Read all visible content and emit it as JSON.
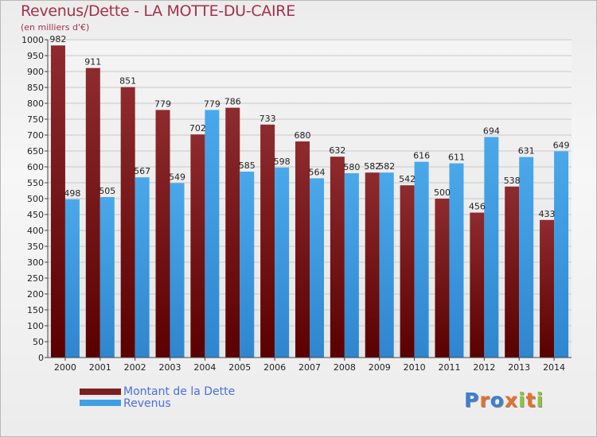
{
  "chart_data": {
    "type": "bar",
    "title": "Revenus/Dette - LA MOTTE-DU-CAIRE",
    "subtitle": "(en milliers d'€)",
    "categories": [
      "2000",
      "2001",
      "2002",
      "2003",
      "2004",
      "2005",
      "2006",
      "2007",
      "2008",
      "2009",
      "2010",
      "2011",
      "2012",
      "2013",
      "2014"
    ],
    "series": [
      {
        "name": "Montant de la Dette",
        "color": "#7a1f1f",
        "values": [
          982,
          911,
          851,
          779,
          702,
          786,
          733,
          680,
          632,
          582,
          542,
          500,
          456,
          538,
          433
        ]
      },
      {
        "name": "Revenus",
        "color": "#3f9fe6",
        "values": [
          498,
          505,
          567,
          549,
          779,
          585,
          598,
          564,
          580,
          582,
          616,
          611,
          694,
          631,
          649
        ]
      }
    ],
    "ylim": [
      0,
      1000
    ],
    "ytick_step": 50,
    "grid": true,
    "legend_position": "bottom-left"
  },
  "logo": {
    "text": "Proxiti",
    "letters": [
      {
        "ch": "P",
        "color": "#3b7fd4"
      },
      {
        "ch": "r",
        "color": "#e8702a"
      },
      {
        "ch": "o",
        "color": "#3b7fd4"
      },
      {
        "ch": "x",
        "color": "#e8702a"
      },
      {
        "ch": "i",
        "color": "#8cc63f"
      },
      {
        "ch": "t",
        "color": "#e8702a"
      },
      {
        "ch": "i",
        "color": "#8cc63f"
      }
    ]
  }
}
